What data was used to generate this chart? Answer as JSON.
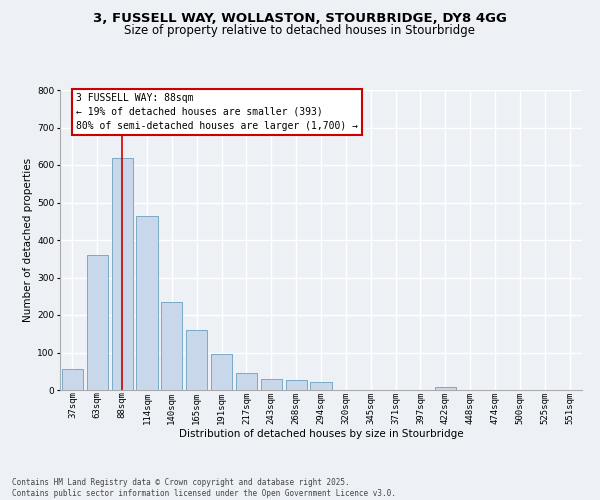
{
  "title1": "3, FUSSELL WAY, WOLLASTON, STOURBRIDGE, DY8 4GG",
  "title2": "Size of property relative to detached houses in Stourbridge",
  "xlabel": "Distribution of detached houses by size in Stourbridge",
  "ylabel": "Number of detached properties",
  "categories": [
    "37sqm",
    "63sqm",
    "88sqm",
    "114sqm",
    "140sqm",
    "165sqm",
    "191sqm",
    "217sqm",
    "243sqm",
    "268sqm",
    "294sqm",
    "320sqm",
    "345sqm",
    "371sqm",
    "397sqm",
    "422sqm",
    "448sqm",
    "474sqm",
    "500sqm",
    "525sqm",
    "551sqm"
  ],
  "values": [
    55,
    360,
    620,
    465,
    235,
    160,
    95,
    45,
    30,
    28,
    22,
    0,
    0,
    0,
    0,
    8,
    0,
    0,
    0,
    0,
    0
  ],
  "bar_color": "#c8d8ea",
  "bar_edge_color": "#6a9fc0",
  "vline_x_index": 2,
  "vline_color": "#cc0000",
  "annotation_text": "3 FUSSELL WAY: 88sqm\n← 19% of detached houses are smaller (393)\n80% of semi-detached houses are larger (1,700) →",
  "annotation_box_edgecolor": "#cc0000",
  "ylim": [
    0,
    800
  ],
  "yticks": [
    0,
    100,
    200,
    300,
    400,
    500,
    600,
    700,
    800
  ],
  "footer_text": "Contains HM Land Registry data © Crown copyright and database right 2025.\nContains public sector information licensed under the Open Government Licence v3.0.",
  "background_color": "#edf1f6",
  "grid_color": "#ffffff",
  "title_fontsize": 9.5,
  "subtitle_fontsize": 8.5,
  "axis_label_fontsize": 7.5,
  "tick_fontsize": 6.5,
  "annotation_fontsize": 7,
  "footer_fontsize": 5.5
}
